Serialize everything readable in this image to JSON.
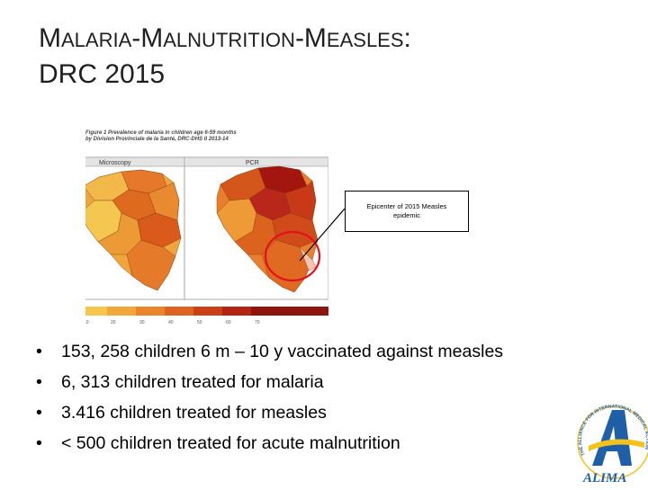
{
  "slide": {
    "title_line1_caps": [
      "M",
      "ALARIA",
      "-M",
      "ALNUTRITION",
      "-M",
      "EASLES",
      ":"
    ],
    "title_line2": "DRC 2015"
  },
  "figure": {
    "caption_line1": "Figure 1  Prevalence of malaria in children age 6-59 months",
    "caption_line2": "by Division Provinciale de la Santé, DRC-DHS II 2013-14",
    "panel_left_label": "Microscopy",
    "panel_right_label": "PCR",
    "scale_ticks": [
      "10",
      "20",
      "30",
      "40",
      "50",
      "60",
      "70"
    ]
  },
  "callout": {
    "text": "Epicenter of 2015 Measles epidemic"
  },
  "bullets": [
    "153, 258 children 6 m – 10 y vaccinated against measles",
    "6, 313 children treated for malaria",
    "3.416 children treated for measles",
    "< 500 children treated for acute malnutrition"
  ],
  "logo": {
    "text": "ALIMA",
    "ring_text": "THE ALLIANCE FOR INTERNATIONAL MEDICAL ACTION"
  },
  "colors": {
    "map_dark": "#a3160f",
    "map_mid": "#e86a1c",
    "map_light": "#f6c24e",
    "highlight_circle": "#e3101f",
    "logo_blue": "#1f5fa8",
    "logo_yellow": "#f4c21b"
  }
}
